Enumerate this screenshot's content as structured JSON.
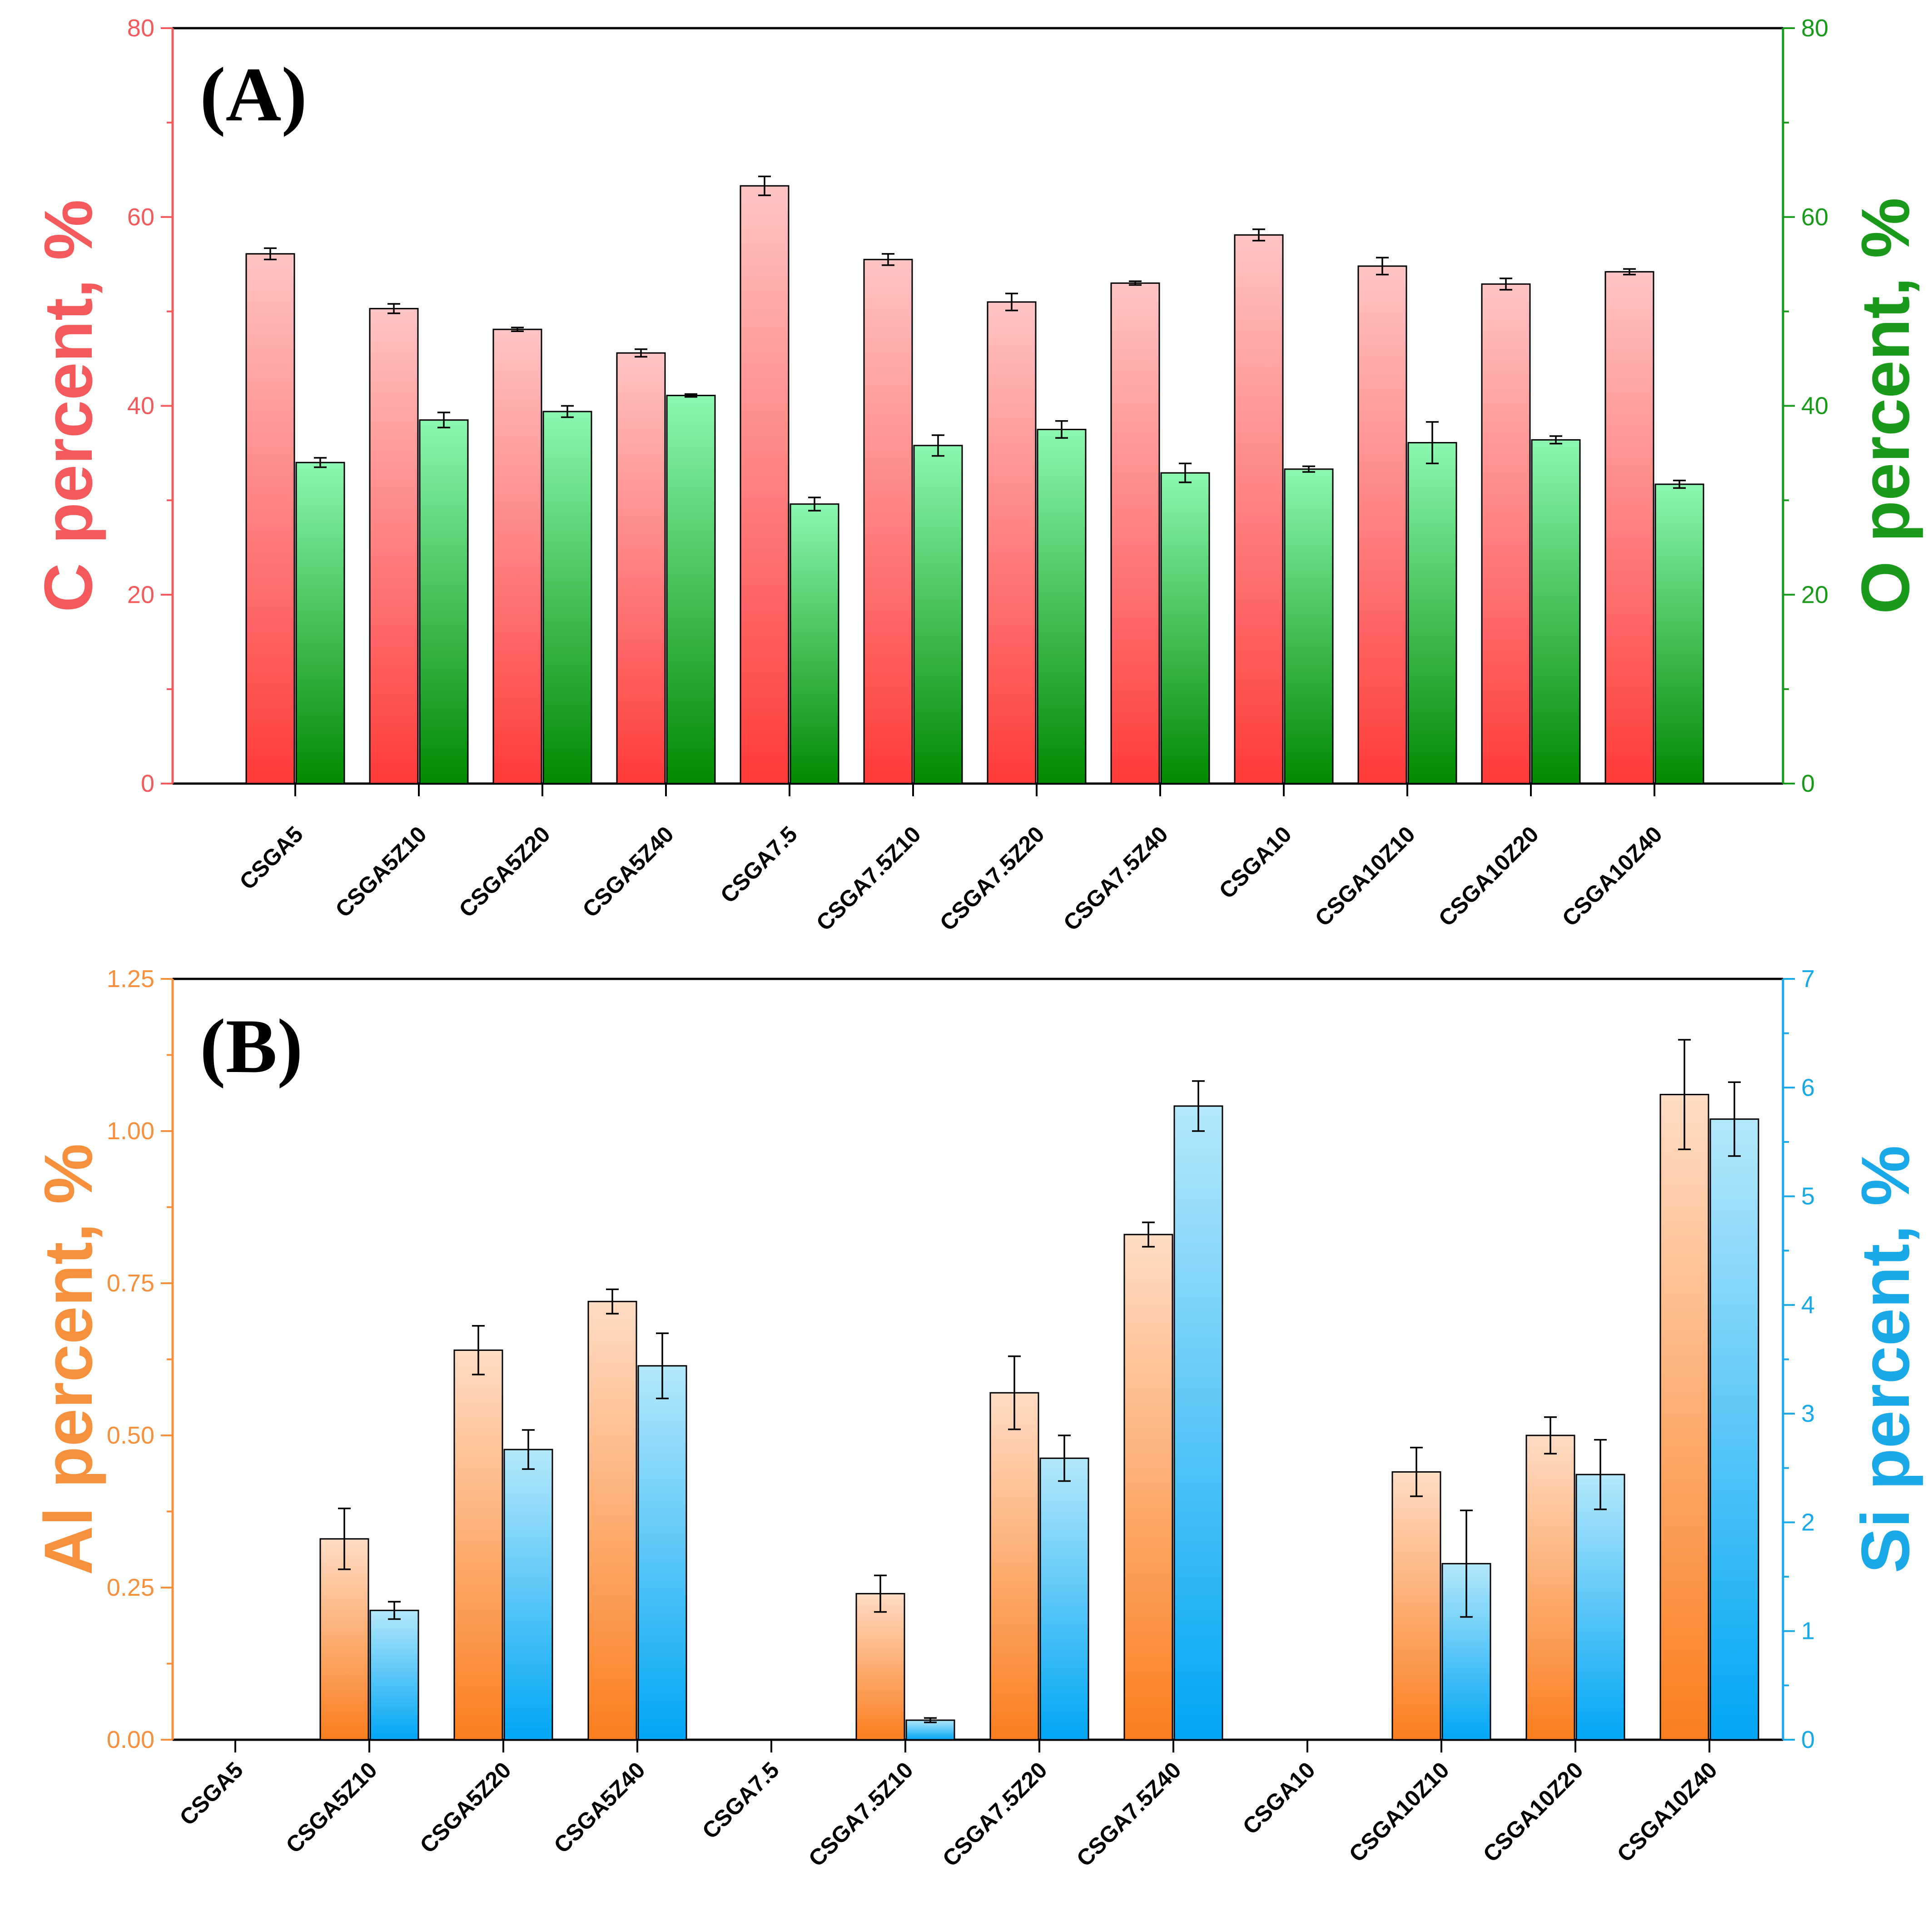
{
  "colors": {
    "c_axis": "#f4595b",
    "o_axis": "#1a9a1a",
    "al_axis": "#f7903c",
    "si_axis": "#19a9e8",
    "c_bar_top": "#ffc4c4",
    "c_bar_bottom": "#ff3a3a",
    "o_bar_top": "#8cf7b0",
    "o_bar_bottom": "#008a00",
    "al_bar_top": "#ffdcc4",
    "al_bar_bottom": "#fb7e1e",
    "si_bar_top": "#b4e8fb",
    "si_bar_bottom": "#00a6f5"
  },
  "chart_data": [
    {
      "type": "bar",
      "panel_label": "(A)",
      "categories": [
        "CSGA5",
        "CSGA5Z10",
        "CSGA5Z20",
        "CSGA5Z40",
        "CSGA7.5",
        "CSGA7.5Z10",
        "CSGA7.5Z20",
        "CSGA7.5Z40",
        "CSGA10",
        "CSGA10Z10",
        "CSGA10Z20",
        "CSGA10Z40"
      ],
      "left_axis": {
        "label": "C percent, %",
        "ylim": [
          0,
          80
        ],
        "ticks": [
          "0",
          "20",
          "40",
          "60",
          "80"
        ]
      },
      "right_axis": {
        "label": "O percent, %",
        "ylim": [
          0,
          80
        ],
        "ticks": [
          "0",
          "20",
          "40",
          "60",
          "80"
        ]
      },
      "series": [
        {
          "name": "C",
          "axis": "left",
          "values": [
            56.1,
            50.3,
            48.1,
            45.6,
            63.3,
            55.5,
            51.0,
            53.0,
            58.1,
            54.8,
            52.9,
            54.2
          ],
          "errors": [
            0.6,
            0.5,
            0.2,
            0.4,
            1.0,
            0.6,
            0.9,
            0.2,
            0.6,
            0.9,
            0.6,
            0.3
          ]
        },
        {
          "name": "O",
          "axis": "right",
          "values": [
            34.0,
            38.5,
            39.4,
            41.1,
            29.6,
            35.8,
            37.5,
            32.9,
            33.3,
            36.1,
            36.4,
            31.7
          ],
          "errors": [
            0.5,
            0.8,
            0.6,
            0.15,
            0.7,
            1.1,
            0.9,
            1.0,
            0.3,
            2.2,
            0.4,
            0.4
          ]
        }
      ]
    },
    {
      "type": "bar",
      "panel_label": "(B)",
      "categories": [
        "CSGA5",
        "CSGA5Z10",
        "CSGA5Z20",
        "CSGA5Z40",
        "CSGA7.5",
        "CSGA7.5Z10",
        "CSGA7.5Z20",
        "CSGA7.5Z40",
        "CSGA10",
        "CSGA10Z10",
        "CSGA10Z20",
        "CSGA10Z40"
      ],
      "left_axis": {
        "label": "Al percent, %",
        "ylim": [
          0,
          1.25
        ],
        "ticks": [
          "0.00",
          "0.25",
          "0.50",
          "0.75",
          "1.00",
          "1.25"
        ]
      },
      "right_axis": {
        "label": "Si percent, %",
        "ylim": [
          0,
          7
        ],
        "ticks": [
          "0",
          "1",
          "2",
          "3",
          "4",
          "5",
          "6",
          "7"
        ]
      },
      "series": [
        {
          "name": "Al",
          "axis": "left",
          "values": [
            0,
            0.33,
            0.64,
            0.72,
            0,
            0.24,
            0.57,
            0.83,
            0,
            0.44,
            0.5,
            1.06
          ],
          "errors": [
            0,
            0.05,
            0.04,
            0.02,
            0,
            0.03,
            0.06,
            0.02,
            0,
            0.04,
            0.03,
            0.09
          ]
        },
        {
          "name": "Si",
          "axis": "right",
          "values": [
            0,
            1.19,
            2.67,
            3.44,
            0,
            0.18,
            2.59,
            5.83,
            0,
            1.62,
            2.44,
            5.71
          ],
          "errors": [
            0,
            0.08,
            0.18,
            0.3,
            0,
            0.02,
            0.21,
            0.23,
            0,
            0.49,
            0.32,
            0.34
          ]
        }
      ]
    }
  ]
}
